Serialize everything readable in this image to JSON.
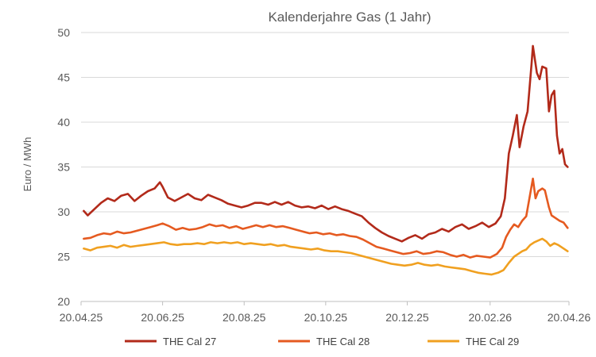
{
  "chart_data": {
    "type": "line",
    "title": "Kalenderjahre Gas (1 Jahr)",
    "xlabel": "",
    "ylabel": "Euro / MWh",
    "ylim": [
      20,
      50
    ],
    "yticks": [
      20,
      25,
      30,
      35,
      40,
      45,
      50
    ],
    "xlim": [
      "2025-04-20",
      "2026-04-20"
    ],
    "xticks": [
      {
        "date": "2025-04-20",
        "label": "20.04.25"
      },
      {
        "date": "2025-06-20",
        "label": "20.06.25"
      },
      {
        "date": "2025-08-20",
        "label": "20.08.25"
      },
      {
        "date": "2025-10-20",
        "label": "20.10.25"
      },
      {
        "date": "2025-12-20",
        "label": "20.12.25"
      },
      {
        "date": "2026-02-20",
        "label": "20.02.26"
      },
      {
        "date": "2026-04-20",
        "label": "20.04.26"
      }
    ],
    "grid": {
      "horizontal": true,
      "vertical": false
    },
    "legend_position": "bottom",
    "series": [
      {
        "name": "THE Cal 27",
        "color": "#B22A1A",
        "points": [
          [
            "2025-04-22",
            30.1
          ],
          [
            "2025-04-25",
            29.6
          ],
          [
            "2025-04-30",
            30.3
          ],
          [
            "2025-05-05",
            31.0
          ],
          [
            "2025-05-10",
            31.5
          ],
          [
            "2025-05-15",
            31.2
          ],
          [
            "2025-05-20",
            31.8
          ],
          [
            "2025-05-25",
            32.0
          ],
          [
            "2025-05-30",
            31.2
          ],
          [
            "2025-06-04",
            31.8
          ],
          [
            "2025-06-09",
            32.3
          ],
          [
            "2025-06-14",
            32.6
          ],
          [
            "2025-06-18",
            33.3
          ],
          [
            "2025-06-20",
            32.8
          ],
          [
            "2025-06-24",
            31.6
          ],
          [
            "2025-06-29",
            31.2
          ],
          [
            "2025-07-04",
            31.6
          ],
          [
            "2025-07-09",
            32.0
          ],
          [
            "2025-07-14",
            31.5
          ],
          [
            "2025-07-19",
            31.3
          ],
          [
            "2025-07-24",
            31.9
          ],
          [
            "2025-07-29",
            31.6
          ],
          [
            "2025-08-03",
            31.3
          ],
          [
            "2025-08-08",
            30.9
          ],
          [
            "2025-08-13",
            30.7
          ],
          [
            "2025-08-18",
            30.5
          ],
          [
            "2025-08-23",
            30.7
          ],
          [
            "2025-08-28",
            31.0
          ],
          [
            "2025-09-02",
            31.0
          ],
          [
            "2025-09-07",
            30.8
          ],
          [
            "2025-09-12",
            31.1
          ],
          [
            "2025-09-17",
            30.8
          ],
          [
            "2025-09-22",
            31.1
          ],
          [
            "2025-09-27",
            30.7
          ],
          [
            "2025-10-02",
            30.5
          ],
          [
            "2025-10-07",
            30.6
          ],
          [
            "2025-10-12",
            30.4
          ],
          [
            "2025-10-17",
            30.7
          ],
          [
            "2025-10-22",
            30.3
          ],
          [
            "2025-10-27",
            30.6
          ],
          [
            "2025-11-01",
            30.3
          ],
          [
            "2025-11-06",
            30.1
          ],
          [
            "2025-11-11",
            29.8
          ],
          [
            "2025-11-16",
            29.5
          ],
          [
            "2025-11-21",
            28.8
          ],
          [
            "2025-11-26",
            28.2
          ],
          [
            "2025-12-01",
            27.7
          ],
          [
            "2025-12-06",
            27.3
          ],
          [
            "2025-12-11",
            27.0
          ],
          [
            "2025-12-16",
            26.7
          ],
          [
            "2025-12-21",
            27.1
          ],
          [
            "2025-12-26",
            27.4
          ],
          [
            "2025-12-31",
            27.0
          ],
          [
            "2026-01-05",
            27.5
          ],
          [
            "2026-01-10",
            27.7
          ],
          [
            "2026-01-15",
            28.1
          ],
          [
            "2026-01-20",
            27.8
          ],
          [
            "2026-01-25",
            28.3
          ],
          [
            "2026-01-30",
            28.6
          ],
          [
            "2026-02-04",
            28.1
          ],
          [
            "2026-02-09",
            28.4
          ],
          [
            "2026-02-14",
            28.8
          ],
          [
            "2026-02-19",
            28.3
          ],
          [
            "2026-02-24",
            28.7
          ],
          [
            "2026-02-28",
            29.5
          ],
          [
            "2026-03-03",
            31.5
          ],
          [
            "2026-03-06",
            36.5
          ],
          [
            "2026-03-09",
            38.5
          ],
          [
            "2026-03-12",
            40.8
          ],
          [
            "2026-03-14",
            37.2
          ],
          [
            "2026-03-17",
            39.5
          ],
          [
            "2026-03-20",
            41.2
          ],
          [
            "2026-03-23",
            46.5
          ],
          [
            "2026-03-24",
            48.5
          ],
          [
            "2026-03-27",
            45.5
          ],
          [
            "2026-03-29",
            44.8
          ],
          [
            "2026-03-31",
            46.2
          ],
          [
            "2026-04-03",
            46.0
          ],
          [
            "2026-04-05",
            41.2
          ],
          [
            "2026-04-07",
            43.0
          ],
          [
            "2026-04-09",
            43.5
          ],
          [
            "2026-04-11",
            38.5
          ],
          [
            "2026-04-13",
            36.5
          ],
          [
            "2026-04-15",
            37.0
          ],
          [
            "2026-04-17",
            35.3
          ],
          [
            "2026-04-19",
            35.0
          ]
        ]
      },
      {
        "name": "THE Cal 28",
        "color": "#E55A20",
        "points": [
          [
            "2025-04-22",
            27.0
          ],
          [
            "2025-04-27",
            27.1
          ],
          [
            "2025-05-02",
            27.4
          ],
          [
            "2025-05-07",
            27.6
          ],
          [
            "2025-05-12",
            27.5
          ],
          [
            "2025-05-17",
            27.8
          ],
          [
            "2025-05-22",
            27.6
          ],
          [
            "2025-05-27",
            27.7
          ],
          [
            "2025-06-01",
            27.9
          ],
          [
            "2025-06-06",
            28.1
          ],
          [
            "2025-06-11",
            28.3
          ],
          [
            "2025-06-16",
            28.5
          ],
          [
            "2025-06-20",
            28.7
          ],
          [
            "2025-06-25",
            28.4
          ],
          [
            "2025-06-30",
            28.0
          ],
          [
            "2025-07-05",
            28.2
          ],
          [
            "2025-07-10",
            28.0
          ],
          [
            "2025-07-15",
            28.1
          ],
          [
            "2025-07-20",
            28.3
          ],
          [
            "2025-07-25",
            28.6
          ],
          [
            "2025-07-30",
            28.4
          ],
          [
            "2025-08-04",
            28.5
          ],
          [
            "2025-08-09",
            28.2
          ],
          [
            "2025-08-14",
            28.4
          ],
          [
            "2025-08-19",
            28.1
          ],
          [
            "2025-08-24",
            28.3
          ],
          [
            "2025-08-29",
            28.5
          ],
          [
            "2025-09-03",
            28.3
          ],
          [
            "2025-09-08",
            28.5
          ],
          [
            "2025-09-13",
            28.3
          ],
          [
            "2025-09-18",
            28.4
          ],
          [
            "2025-09-23",
            28.2
          ],
          [
            "2025-09-28",
            28.0
          ],
          [
            "2025-10-03",
            27.8
          ],
          [
            "2025-10-08",
            27.6
          ],
          [
            "2025-10-13",
            27.7
          ],
          [
            "2025-10-18",
            27.5
          ],
          [
            "2025-10-23",
            27.6
          ],
          [
            "2025-10-28",
            27.4
          ],
          [
            "2025-11-02",
            27.5
          ],
          [
            "2025-11-07",
            27.3
          ],
          [
            "2025-11-12",
            27.2
          ],
          [
            "2025-11-17",
            26.9
          ],
          [
            "2025-11-22",
            26.5
          ],
          [
            "2025-11-27",
            26.1
          ],
          [
            "2025-12-02",
            25.9
          ],
          [
            "2025-12-07",
            25.7
          ],
          [
            "2025-12-12",
            25.5
          ],
          [
            "2025-12-17",
            25.3
          ],
          [
            "2025-12-22",
            25.4
          ],
          [
            "2025-12-27",
            25.6
          ],
          [
            "2026-01-01",
            25.3
          ],
          [
            "2026-01-06",
            25.4
          ],
          [
            "2026-01-11",
            25.6
          ],
          [
            "2026-01-16",
            25.5
          ],
          [
            "2026-01-21",
            25.2
          ],
          [
            "2026-01-26",
            25.0
          ],
          [
            "2026-01-31",
            25.2
          ],
          [
            "2026-02-05",
            24.9
          ],
          [
            "2026-02-10",
            25.1
          ],
          [
            "2026-02-15",
            25.0
          ],
          [
            "2026-02-20",
            24.9
          ],
          [
            "2026-02-25",
            25.3
          ],
          [
            "2026-03-01",
            26.0
          ],
          [
            "2026-03-04",
            27.2
          ],
          [
            "2026-03-07",
            28.0
          ],
          [
            "2026-03-10",
            28.6
          ],
          [
            "2026-03-13",
            28.3
          ],
          [
            "2026-03-16",
            29.0
          ],
          [
            "2026-03-19",
            29.5
          ],
          [
            "2026-03-22",
            32.0
          ],
          [
            "2026-03-24",
            33.7
          ],
          [
            "2026-03-26",
            31.5
          ],
          [
            "2026-03-28",
            32.3
          ],
          [
            "2026-03-31",
            32.6
          ],
          [
            "2026-04-02",
            32.4
          ],
          [
            "2026-04-05",
            30.5
          ],
          [
            "2026-04-07",
            29.6
          ],
          [
            "2026-04-10",
            29.3
          ],
          [
            "2026-04-13",
            29.0
          ],
          [
            "2026-04-16",
            28.8
          ],
          [
            "2026-04-19",
            28.2
          ]
        ]
      },
      {
        "name": "THE Cal 29",
        "color": "#F0A020",
        "points": [
          [
            "2025-04-22",
            25.9
          ],
          [
            "2025-04-27",
            25.7
          ],
          [
            "2025-05-02",
            26.0
          ],
          [
            "2025-05-07",
            26.1
          ],
          [
            "2025-05-12",
            26.2
          ],
          [
            "2025-05-17",
            26.0
          ],
          [
            "2025-05-22",
            26.3
          ],
          [
            "2025-05-27",
            26.1
          ],
          [
            "2025-06-01",
            26.2
          ],
          [
            "2025-06-06",
            26.3
          ],
          [
            "2025-06-11",
            26.4
          ],
          [
            "2025-06-16",
            26.5
          ],
          [
            "2025-06-21",
            26.6
          ],
          [
            "2025-06-26",
            26.4
          ],
          [
            "2025-07-01",
            26.3
          ],
          [
            "2025-07-06",
            26.4
          ],
          [
            "2025-07-11",
            26.4
          ],
          [
            "2025-07-16",
            26.5
          ],
          [
            "2025-07-21",
            26.4
          ],
          [
            "2025-07-26",
            26.6
          ],
          [
            "2025-07-31",
            26.5
          ],
          [
            "2025-08-05",
            26.6
          ],
          [
            "2025-08-10",
            26.5
          ],
          [
            "2025-08-15",
            26.6
          ],
          [
            "2025-08-20",
            26.4
          ],
          [
            "2025-08-25",
            26.5
          ],
          [
            "2025-08-30",
            26.4
          ],
          [
            "2025-09-04",
            26.3
          ],
          [
            "2025-09-09",
            26.4
          ],
          [
            "2025-09-14",
            26.2
          ],
          [
            "2025-09-19",
            26.3
          ],
          [
            "2025-09-24",
            26.1
          ],
          [
            "2025-09-29",
            26.0
          ],
          [
            "2025-10-04",
            25.9
          ],
          [
            "2025-10-09",
            25.8
          ],
          [
            "2025-10-14",
            25.9
          ],
          [
            "2025-10-19",
            25.7
          ],
          [
            "2025-10-24",
            25.6
          ],
          [
            "2025-10-29",
            25.6
          ],
          [
            "2025-11-03",
            25.5
          ],
          [
            "2025-11-08",
            25.4
          ],
          [
            "2025-11-13",
            25.2
          ],
          [
            "2025-11-18",
            25.0
          ],
          [
            "2025-11-23",
            24.8
          ],
          [
            "2025-11-28",
            24.6
          ],
          [
            "2025-12-03",
            24.4
          ],
          [
            "2025-12-08",
            24.2
          ],
          [
            "2025-12-13",
            24.1
          ],
          [
            "2025-12-18",
            24.0
          ],
          [
            "2025-12-23",
            24.1
          ],
          [
            "2025-12-28",
            24.3
          ],
          [
            "2026-01-02",
            24.1
          ],
          [
            "2026-01-07",
            24.0
          ],
          [
            "2026-01-12",
            24.1
          ],
          [
            "2026-01-17",
            23.9
          ],
          [
            "2026-01-22",
            23.8
          ],
          [
            "2026-01-27",
            23.7
          ],
          [
            "2026-02-01",
            23.6
          ],
          [
            "2026-02-06",
            23.4
          ],
          [
            "2026-02-11",
            23.2
          ],
          [
            "2026-02-16",
            23.1
          ],
          [
            "2026-02-21",
            23.0
          ],
          [
            "2026-02-26",
            23.2
          ],
          [
            "2026-03-02",
            23.5
          ],
          [
            "2026-03-06",
            24.3
          ],
          [
            "2026-03-10",
            25.0
          ],
          [
            "2026-03-13",
            25.3
          ],
          [
            "2026-03-16",
            25.6
          ],
          [
            "2026-03-19",
            25.8
          ],
          [
            "2026-03-22",
            26.3
          ],
          [
            "2026-03-25",
            26.6
          ],
          [
            "2026-03-28",
            26.8
          ],
          [
            "2026-03-31",
            27.0
          ],
          [
            "2026-04-03",
            26.7
          ],
          [
            "2026-04-06",
            26.2
          ],
          [
            "2026-04-09",
            26.5
          ],
          [
            "2026-04-12",
            26.3
          ],
          [
            "2026-04-15",
            26.0
          ],
          [
            "2026-04-19",
            25.6
          ]
        ]
      }
    ]
  }
}
